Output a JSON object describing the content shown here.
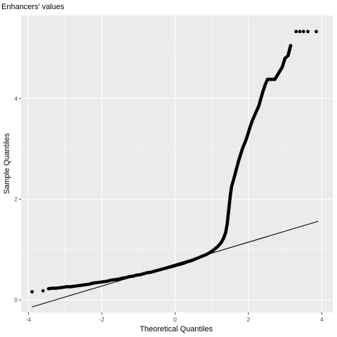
{
  "chart_data": {
    "type": "scatter",
    "title": "Enhancers' values",
    "xlabel": "Theoretical Quantiles",
    "ylabel": "Sample Quantiles",
    "xlim": [
      -4.2,
      4.3
    ],
    "ylim": [
      -0.25,
      5.65
    ],
    "x_ticks": [
      -4,
      -2,
      0,
      2,
      4
    ],
    "x_tick_labels": [
      "-4",
      "-2",
      "0",
      "2",
      "4"
    ],
    "y_ticks": [
      0,
      2,
      4
    ],
    "y_tick_labels": [
      "0",
      "2",
      "4"
    ],
    "grid": true,
    "background": "#ebebeb",
    "grid_color": "#ffffff",
    "point_color": "#000000",
    "reference_line": {
      "x": [
        -3.9,
        3.9
      ],
      "y": [
        -0.14,
        1.56
      ]
    },
    "points": [
      [
        -3.9,
        0.16
      ],
      [
        -3.6,
        0.18
      ],
      [
        -3.45,
        0.22
      ],
      [
        -3.35,
        0.23
      ],
      [
        -3.25,
        0.23
      ],
      [
        -3.15,
        0.24
      ],
      [
        -3.05,
        0.25
      ],
      [
        -2.95,
        0.26
      ],
      [
        -2.85,
        0.26
      ],
      [
        -2.75,
        0.27
      ],
      [
        -2.65,
        0.28
      ],
      [
        -2.55,
        0.29
      ],
      [
        -2.45,
        0.3
      ],
      [
        -2.35,
        0.31
      ],
      [
        -2.25,
        0.33
      ],
      [
        -2.15,
        0.34
      ],
      [
        -2.05,
        0.35
      ],
      [
        -1.95,
        0.36
      ],
      [
        -1.85,
        0.37
      ],
      [
        -1.75,
        0.39
      ],
      [
        -1.65,
        0.4
      ],
      [
        -1.55,
        0.41
      ],
      [
        -1.45,
        0.43
      ],
      [
        -1.35,
        0.44
      ],
      [
        -1.25,
        0.46
      ],
      [
        -1.15,
        0.47
      ],
      [
        -1.05,
        0.49
      ],
      [
        -0.95,
        0.5
      ],
      [
        -0.85,
        0.52
      ],
      [
        -0.75,
        0.54
      ],
      [
        -0.65,
        0.55
      ],
      [
        -0.55,
        0.57
      ],
      [
        -0.45,
        0.59
      ],
      [
        -0.35,
        0.61
      ],
      [
        -0.25,
        0.63
      ],
      [
        -0.15,
        0.65
      ],
      [
        -0.05,
        0.67
      ],
      [
        0.05,
        0.69
      ],
      [
        0.15,
        0.71
      ],
      [
        0.25,
        0.73
      ],
      [
        0.35,
        0.76
      ],
      [
        0.45,
        0.78
      ],
      [
        0.55,
        0.81
      ],
      [
        0.65,
        0.84
      ],
      [
        0.75,
        0.87
      ],
      [
        0.85,
        0.9
      ],
      [
        0.95,
        0.94
      ],
      [
        1.05,
        0.99
      ],
      [
        1.15,
        1.05
      ],
      [
        1.25,
        1.13
      ],
      [
        1.32,
        1.22
      ],
      [
        1.38,
        1.34
      ],
      [
        1.42,
        1.5
      ],
      [
        1.45,
        1.7
      ],
      [
        1.48,
        1.9
      ],
      [
        1.51,
        2.1
      ],
      [
        1.54,
        2.25
      ],
      [
        1.58,
        2.35
      ],
      [
        1.63,
        2.48
      ],
      [
        1.68,
        2.62
      ],
      [
        1.74,
        2.78
      ],
      [
        1.8,
        2.92
      ],
      [
        1.86,
        3.05
      ],
      [
        1.92,
        3.15
      ],
      [
        1.98,
        3.28
      ],
      [
        2.04,
        3.42
      ],
      [
        2.1,
        3.55
      ],
      [
        2.16,
        3.65
      ],
      [
        2.22,
        3.75
      ],
      [
        2.28,
        3.85
      ],
      [
        2.34,
        4.0
      ],
      [
        2.4,
        4.15
      ],
      [
        2.46,
        4.28
      ],
      [
        2.52,
        4.38
      ],
      [
        2.62,
        4.38
      ],
      [
        2.72,
        4.38
      ],
      [
        2.82,
        4.5
      ],
      [
        2.92,
        4.62
      ],
      [
        3.0,
        4.8
      ],
      [
        3.08,
        4.85
      ],
      [
        3.15,
        5.05
      ],
      [
        3.3,
        5.33
      ],
      [
        3.4,
        5.33
      ],
      [
        3.5,
        5.33
      ],
      [
        3.62,
        5.33
      ],
      [
        3.85,
        5.33
      ]
    ]
  }
}
